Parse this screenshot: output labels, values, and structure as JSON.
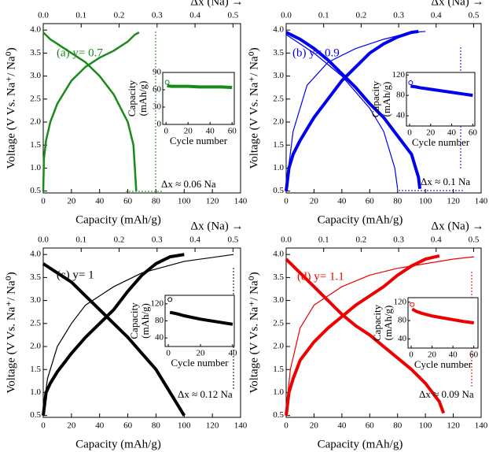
{
  "chart_data": [
    {
      "type": "line",
      "title": "(a) y= 0.7",
      "annotation": "Δx ≈ 0.06 Na",
      "color": "#1a8a1a",
      "xlabel": "Capacity (mAh/g)",
      "ylabel": "Voltage (V Vs. Na⁺/ Na⁰)",
      "x2label": "Δx (Na) →",
      "xlim": [
        0,
        140
      ],
      "xticks": [
        0,
        20,
        40,
        60,
        80,
        100,
        120,
        140
      ],
      "x2lim": [
        0,
        0.52
      ],
      "x2ticks": [
        {
          "value": 0,
          "label": "0.0"
        },
        0.1,
        0.2,
        0.3,
        0.4,
        0.5
      ],
      "ylim": [
        0.46,
        4.14
      ],
      "yticks": [
        0.5,
        {
          "value": 1,
          "label": "1.0"
        },
        1.5,
        {
          "value": 2,
          "label": "2.0"
        },
        2.5,
        {
          "value": 3,
          "label": "3.0"
        },
        3.5,
        {
          "value": 4,
          "label": "4.0"
        }
      ],
      "series": [
        {
          "color": "#1a8a1a",
          "x": [
            0,
            0.5,
            2,
            5,
            10,
            20,
            30,
            40,
            50,
            60,
            65,
            68
          ],
          "values": [
            0.5,
            1.2,
            1.6,
            2.0,
            2.4,
            2.9,
            3.2,
            3.4,
            3.55,
            3.75,
            3.9,
            3.95
          ]
        },
        {
          "color": "#1a8a1a",
          "x": [
            0,
            5,
            10,
            20,
            30,
            40,
            50,
            60,
            64,
            65,
            66
          ],
          "values": [
            3.95,
            3.8,
            3.7,
            3.5,
            3.3,
            3.0,
            2.6,
            2.0,
            1.5,
            1.0,
            0.5
          ]
        }
      ],
      "inset": {
        "type": "line",
        "xlabel": "Cycle number",
        "ylabel": [
          "Capacity",
          "(mAh/g)"
        ],
        "xlim": [
          -3,
          62
        ],
        "xticks": [
          0,
          20,
          40,
          60
        ],
        "ylim": [
          0,
          90
        ],
        "yticks": [
          0,
          30,
          60,
          90
        ],
        "x": [
          1,
          5,
          10,
          20,
          30,
          40,
          50,
          60
        ],
        "values": [
          67,
          66,
          66,
          66,
          65,
          65,
          65,
          64
        ],
        "first_x": 1,
        "first_value": 73
      }
    },
    {
      "type": "line",
      "title": "(b) y= 0.9",
      "annotation": "Δx ≈ 0.1 Na",
      "color": "#0000ee",
      "xlabel": "Capacity (mAh/g)",
      "ylabel": "Voltage (V Vs. Na⁺/ Na⁰)",
      "x2label": "Δx (Na) →",
      "xlim": [
        0,
        140
      ],
      "xticks": [
        0,
        20,
        40,
        60,
        80,
        100,
        120,
        140
      ],
      "x2lim": [
        0,
        0.52
      ],
      "x2ticks": [
        {
          "value": 0,
          "label": "0.0"
        },
        0.1,
        0.2,
        0.3,
        0.4,
        0.5
      ],
      "ylim": [
        0.46,
        4.14
      ],
      "yticks": [
        0.5,
        {
          "value": 1,
          "label": "1.0"
        },
        1.5,
        {
          "value": 2,
          "label": "2.0"
        },
        2.5,
        {
          "value": 3,
          "label": "3.0"
        },
        3.5,
        {
          "value": 4,
          "label": "4.0"
        }
      ],
      "series": [
        {
          "color": "#0000ee",
          "x": [
            0,
            5,
            15,
            30,
            50,
            70,
            90,
            100
          ],
          "values": [
            0.6,
            1.8,
            2.8,
            3.3,
            3.6,
            3.8,
            3.95,
            3.97
          ]
        },
        {
          "color": "#0000ee",
          "x": [
            0,
            20,
            40,
            60,
            70,
            78,
            80
          ],
          "values": [
            3.9,
            3.5,
            3.0,
            2.3,
            1.8,
            1.0,
            0.55
          ]
        },
        {
          "color": "#0000ee",
          "x": [
            0,
            2,
            5,
            10,
            20,
            30,
            40,
            50,
            60,
            70,
            80,
            90,
            95
          ],
          "values": [
            0.5,
            1.0,
            1.3,
            1.6,
            2.1,
            2.5,
            2.9,
            3.2,
            3.5,
            3.7,
            3.85,
            3.95,
            3.97
          ]
        },
        {
          "color": "#0000ee",
          "x": [
            0,
            10,
            20,
            30,
            40,
            50,
            60,
            70,
            80,
            90,
            95,
            96
          ],
          "values": [
            3.95,
            3.8,
            3.6,
            3.35,
            3.05,
            2.75,
            2.4,
            2.1,
            1.7,
            1.3,
            0.8,
            0.55
          ]
        }
      ],
      "inset": {
        "type": "line",
        "xlabel": "Cycle number",
        "ylabel": [
          "Capacity",
          "(mAh/g)"
        ],
        "xlim": [
          -3,
          62
        ],
        "xticks": [
          0,
          20,
          40,
          60
        ],
        "ylim": [
          20,
          125
        ],
        "yticks": [
          40,
          80,
          120
        ],
        "x": [
          1,
          5,
          10,
          20,
          30,
          40,
          50,
          60
        ],
        "values": [
          98,
          97,
          95,
          92,
          89,
          86,
          83,
          80
        ],
        "first_x": 1,
        "first_value": 105
      }
    },
    {
      "type": "line",
      "title": "(c) y= 1",
      "annotation": "Δx ≈ 0.12 Na",
      "color": "#000000",
      "xlabel": "Capacity (mAh/g)",
      "ylabel": "Voltage (V Vs. Na⁺/ Na⁰)",
      "x2label": "Δx (Na) →",
      "xlim": [
        0,
        140
      ],
      "xticks": [
        0,
        20,
        40,
        60,
        80,
        100,
        120,
        140
      ],
      "x2lim": [
        0,
        0.52
      ],
      "x2ticks": [
        {
          "value": 0,
          "label": "0.0"
        },
        0.1,
        0.2,
        0.3,
        0.4,
        0.5
      ],
      "ylim": [
        0.46,
        4.14
      ],
      "yticks": [
        0.5,
        {
          "value": 1,
          "label": "1.0"
        },
        1.5,
        {
          "value": 2,
          "label": "2.0"
        },
        2.5,
        {
          "value": 3,
          "label": "3.0"
        },
        3.5,
        {
          "value": 4,
          "label": "4.0"
        }
      ],
      "series": [
        {
          "color": "#000000",
          "x": [
            0,
            3,
            10,
            20,
            30,
            50,
            70,
            100,
            135
          ],
          "values": [
            0.6,
            1.3,
            2.0,
            2.5,
            2.9,
            3.3,
            3.6,
            3.85,
            4.0
          ]
        },
        {
          "color": "#000000",
          "x": [
            0,
            2,
            5,
            10,
            20,
            30,
            40,
            50,
            60,
            70,
            80,
            90,
            100
          ],
          "values": [
            0.5,
            1.0,
            1.2,
            1.45,
            1.85,
            2.2,
            2.5,
            2.8,
            3.2,
            3.55,
            3.8,
            3.95,
            4.0
          ]
        },
        {
          "color": "#000000",
          "x": [
            0,
            10,
            20,
            30,
            40,
            50,
            60,
            70,
            80,
            90,
            98,
            100
          ],
          "values": [
            3.8,
            3.6,
            3.4,
            3.1,
            2.8,
            2.5,
            2.2,
            1.85,
            1.5,
            1.0,
            0.6,
            0.5
          ]
        }
      ],
      "inset": {
        "type": "line",
        "xlabel": "Cycle number",
        "ylabel": [
          "Capacity",
          "(mAh/g)"
        ],
        "xlim": [
          -2,
          41
        ],
        "xticks": [
          0,
          20,
          40
        ],
        "ylim": [
          20,
          140
        ],
        "yticks": [
          40,
          80,
          120
        ],
        "x": [
          1,
          5,
          10,
          15,
          20,
          25,
          30,
          35,
          40
        ],
        "values": [
          100,
          97,
          92,
          88,
          84,
          81,
          78,
          75,
          72
        ],
        "first_x": 1,
        "first_value": 130
      }
    },
    {
      "type": "line",
      "title": "(d) y= 1.1",
      "annotation": "Δx ≈ 0.09 Na",
      "color": "#ee0000",
      "xlabel": "Capacity (mAh/g)",
      "ylabel": "Voltage (V Vs. Na⁺/ Na⁰)",
      "x2label": "Δx (Na) →",
      "xlim": [
        0,
        140
      ],
      "xticks": [
        0,
        20,
        40,
        60,
        80,
        100,
        120,
        140
      ],
      "x2lim": [
        0,
        0.52
      ],
      "x2ticks": [
        {
          "value": 0,
          "label": "0.0"
        },
        0.1,
        0.2,
        0.3,
        0.4,
        0.5
      ],
      "ylim": [
        0.46,
        4.14
      ],
      "yticks": [
        0.5,
        {
          "value": 1,
          "label": "1.0"
        },
        1.5,
        {
          "value": 2,
          "label": "2.0"
        },
        2.5,
        {
          "value": 3,
          "label": "3.0"
        },
        3.5,
        {
          "value": 4,
          "label": "4.0"
        }
      ],
      "series": [
        {
          "color": "#ee0000",
          "x": [
            0,
            3,
            10,
            20,
            40,
            60,
            80,
            100,
            120,
            135
          ],
          "values": [
            0.6,
            1.5,
            2.4,
            2.9,
            3.3,
            3.55,
            3.7,
            3.8,
            3.9,
            3.95
          ]
        },
        {
          "color": "#ee0000",
          "x": [
            0,
            2,
            5,
            10,
            20,
            30,
            40,
            50,
            60,
            70,
            80,
            90,
            100,
            110
          ],
          "values": [
            0.5,
            1.0,
            1.3,
            1.7,
            2.1,
            2.4,
            2.65,
            2.9,
            3.1,
            3.3,
            3.55,
            3.75,
            3.9,
            3.97
          ]
        },
        {
          "color": "#ee0000",
          "x": [
            0,
            10,
            20,
            30,
            40,
            50,
            60,
            70,
            80,
            90,
            100,
            110,
            113
          ],
          "values": [
            3.9,
            3.6,
            3.3,
            3.0,
            2.7,
            2.45,
            2.25,
            2.0,
            1.75,
            1.5,
            1.2,
            0.8,
            0.55
          ]
        }
      ],
      "inset": {
        "type": "line",
        "xlabel": "Cycle number",
        "ylabel": [
          "Capacity",
          "(mAh/g)"
        ],
        "xlim": [
          -3,
          64
        ],
        "xticks": [
          0,
          20,
          40,
          60
        ],
        "ylim": [
          20,
          130
        ],
        "yticks": [
          40,
          80,
          120
        ],
        "x": [
          1,
          5,
          10,
          20,
          30,
          40,
          50,
          60
        ],
        "values": [
          105,
          100,
          96,
          90,
          86,
          82,
          78,
          75
        ],
        "first_x": 1,
        "first_value": 115
      }
    }
  ]
}
